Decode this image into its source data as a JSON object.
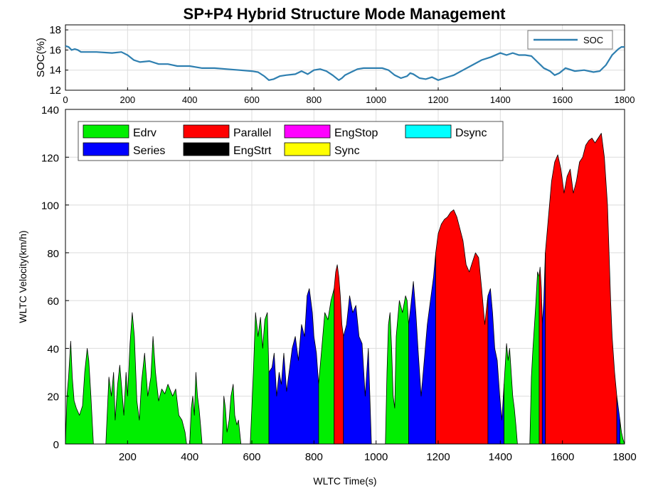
{
  "title": "SP+P4 Hybrid Structure Mode Management",
  "chart_data": [
    {
      "type": "line",
      "ylabel": "SOC(%)",
      "xlim": [
        0,
        1800
      ],
      "ylim": [
        12,
        18.5
      ],
      "yticks": [
        12,
        14,
        16,
        18
      ],
      "xticks": [
        0,
        200,
        400,
        600,
        800,
        1000,
        1200,
        1400,
        1600,
        1800
      ],
      "grid": true,
      "legend_position": "top-right",
      "series": [
        {
          "name": "SOC",
          "color": "#2e7fb0",
          "x": [
            0,
            10,
            20,
            30,
            40,
            50,
            70,
            100,
            150,
            180,
            200,
            220,
            240,
            270,
            300,
            330,
            360,
            400,
            440,
            480,
            520,
            560,
            600,
            620,
            640,
            655,
            670,
            690,
            710,
            740,
            760,
            780,
            800,
            820,
            840,
            860,
            880,
            890,
            900,
            920,
            940,
            960,
            980,
            1000,
            1020,
            1040,
            1060,
            1080,
            1100,
            1110,
            1120,
            1140,
            1160,
            1180,
            1200,
            1220,
            1250,
            1280,
            1310,
            1340,
            1370,
            1400,
            1420,
            1440,
            1460,
            1480,
            1500,
            1520,
            1540,
            1560,
            1575,
            1590,
            1610,
            1640,
            1670,
            1700,
            1720,
            1740,
            1760,
            1780,
            1790,
            1800
          ],
          "values": [
            16.4,
            16.3,
            16.0,
            16.1,
            16.0,
            15.8,
            15.8,
            15.8,
            15.7,
            15.8,
            15.5,
            15.0,
            14.8,
            14.9,
            14.6,
            14.6,
            14.4,
            14.4,
            14.2,
            14.2,
            14.1,
            14.0,
            13.9,
            13.8,
            13.4,
            13.0,
            13.1,
            13.4,
            13.5,
            13.6,
            13.9,
            13.6,
            14.0,
            14.1,
            13.9,
            13.5,
            13.0,
            13.2,
            13.5,
            13.8,
            14.1,
            14.2,
            14.2,
            14.2,
            14.2,
            14.0,
            13.5,
            13.2,
            13.4,
            13.7,
            13.6,
            13.2,
            13.1,
            13.3,
            13.0,
            13.2,
            13.5,
            14.0,
            14.5,
            15.0,
            15.3,
            15.7,
            15.5,
            15.7,
            15.5,
            15.5,
            15.4,
            14.8,
            14.2,
            13.9,
            13.5,
            13.7,
            14.2,
            13.9,
            14.0,
            13.8,
            13.9,
            14.5,
            15.5,
            16.1,
            16.3,
            16.3
          ]
        }
      ]
    },
    {
      "type": "area",
      "xlabel": "WLTC Time(s)",
      "ylabel": "WLTC Velocity(km/h)",
      "xlim": [
        0,
        1800
      ],
      "ylim": [
        0,
        140
      ],
      "xticks": [
        200,
        400,
        600,
        800,
        1000,
        1200,
        1400,
        1600,
        1800
      ],
      "yticks": [
        0,
        20,
        40,
        60,
        80,
        100,
        120,
        140
      ],
      "grid": true,
      "legend_position": "top-left",
      "legend": [
        {
          "name": "Edrv",
          "color": "#00ee00"
        },
        {
          "name": "Series",
          "color": "#0000ff"
        },
        {
          "name": "Parallel",
          "color": "#ff0000"
        },
        {
          "name": "EngStrt",
          "color": "#000000"
        },
        {
          "name": "EngStop",
          "color": "#ff00ff"
        },
        {
          "name": "Sync",
          "color": "#ffff00"
        },
        {
          "name": "Dsync",
          "color": "#00ffff"
        }
      ],
      "segments": [
        {
          "mode": "Edrv",
          "x": [
            0,
            5,
            10,
            17,
            22,
            28,
            35,
            45,
            55,
            62,
            70,
            75,
            82,
            90
          ],
          "values": [
            0,
            20,
            28,
            43,
            28,
            18,
            15,
            12,
            16,
            30,
            40,
            35,
            20,
            0
          ]
        },
        {
          "mode": "Edrv",
          "x": [
            130,
            140,
            148,
            155,
            160,
            168,
            175,
            182,
            188,
            195,
            200,
            208,
            215,
            222,
            230,
            238,
            245,
            255,
            265,
            275,
            282,
            290,
            300,
            310,
            320,
            330,
            345,
            355,
            365,
            375,
            385,
            390
          ],
          "values": [
            0,
            28,
            20,
            30,
            10,
            25,
            33,
            22,
            12,
            30,
            20,
            42,
            55,
            45,
            18,
            10,
            26,
            38,
            20,
            28,
            45,
            30,
            18,
            23,
            21,
            25,
            20,
            23,
            12,
            10,
            5,
            0
          ]
        },
        {
          "mode": "Edrv",
          "x": [
            400,
            405,
            410,
            415,
            420,
            425,
            430,
            435,
            440
          ],
          "values": [
            0,
            15,
            20,
            12,
            30,
            20,
            15,
            8,
            0
          ]
        },
        {
          "mode": "Edrv",
          "x": [
            505,
            510,
            515,
            520,
            527,
            533,
            540,
            545,
            552,
            557,
            565
          ],
          "values": [
            0,
            20,
            15,
            5,
            10,
            20,
            25,
            12,
            8,
            10,
            0
          ]
        },
        {
          "mode": "Edrv",
          "x": [
            595,
            605,
            612,
            620,
            628,
            635,
            642,
            650,
            655
          ],
          "values": [
            0,
            30,
            55,
            45,
            53,
            40,
            52,
            55,
            30
          ]
        },
        {
          "mode": "Series",
          "x": [
            655,
            665,
            672,
            680,
            688,
            695,
            703,
            712,
            720,
            730,
            740,
            750,
            760,
            770,
            778,
            785,
            795,
            800,
            808,
            815
          ],
          "values": [
            30,
            32,
            38,
            20,
            30,
            25,
            38,
            22,
            30,
            40,
            45,
            35,
            50,
            45,
            62,
            65,
            55,
            45,
            38,
            25
          ]
        },
        {
          "mode": "Edrv",
          "x": [
            815,
            825,
            835,
            845,
            855,
            865
          ],
          "values": [
            25,
            40,
            55,
            52,
            60,
            65
          ]
        },
        {
          "mode": "Parallel",
          "x": [
            865,
            870,
            875,
            880,
            885,
            890,
            895
          ],
          "values": [
            65,
            72,
            75,
            70,
            62,
            50,
            45
          ]
        },
        {
          "mode": "Series",
          "x": [
            895,
            905,
            915,
            925,
            935,
            945,
            955,
            965,
            975,
            985
          ],
          "values": [
            45,
            50,
            62,
            55,
            58,
            45,
            42,
            20,
            40,
            0
          ]
        },
        {
          "mode": "Edrv",
          "x": [
            1030,
            1035,
            1040,
            1045,
            1050,
            1055,
            1060,
            1065,
            1075,
            1085,
            1095,
            1100,
            1105
          ],
          "values": [
            0,
            30,
            50,
            55,
            40,
            20,
            15,
            45,
            60,
            55,
            62,
            60,
            50
          ]
        },
        {
          "mode": "Series",
          "x": [
            1105,
            1112,
            1120,
            1128,
            1135,
            1140,
            1145,
            1155,
            1165,
            1175,
            1185,
            1192
          ],
          "values": [
            50,
            58,
            68,
            55,
            40,
            30,
            20,
            35,
            50,
            60,
            70,
            80
          ]
        },
        {
          "mode": "Parallel",
          "x": [
            1192,
            1200,
            1210,
            1220,
            1230,
            1240,
            1250,
            1260,
            1270,
            1280,
            1290,
            1300,
            1310,
            1320,
            1330,
            1340,
            1350,
            1360
          ],
          "values": [
            80,
            88,
            92,
            94,
            95,
            97,
            98,
            95,
            90,
            85,
            75,
            72,
            76,
            80,
            78,
            65,
            50,
            62
          ]
        },
        {
          "mode": "Series",
          "x": [
            1360,
            1368,
            1375,
            1382,
            1390,
            1398,
            1405,
            1412
          ],
          "values": [
            62,
            65,
            55,
            40,
            35,
            20,
            10,
            25
          ]
        },
        {
          "mode": "Edrv",
          "x": [
            1412,
            1420,
            1425,
            1430,
            1435,
            1440,
            1445,
            1450,
            1455
          ],
          "values": [
            25,
            42,
            35,
            40,
            30,
            20,
            15,
            8,
            0
          ]
        },
        {
          "mode": "Edrv",
          "x": [
            1495,
            1500,
            1505,
            1510,
            1515,
            1520,
            1525
          ],
          "values": [
            0,
            28,
            40,
            50,
            60,
            72,
            70
          ]
        },
        {
          "mode": "Parallel",
          "x": [
            1525,
            1528,
            1532,
            1535
          ],
          "values": [
            70,
            74,
            65,
            50
          ]
        },
        {
          "mode": "Series",
          "x": [
            1535,
            1540,
            1545
          ],
          "values": [
            50,
            60,
            80
          ]
        },
        {
          "mode": "Parallel",
          "x": [
            1545,
            1555,
            1565,
            1575,
            1585,
            1595,
            1605,
            1615,
            1625,
            1635,
            1645,
            1655,
            1665,
            1675,
            1685,
            1695,
            1705,
            1715,
            1725,
            1735,
            1745,
            1750,
            1755,
            1760,
            1768,
            1775
          ],
          "values": [
            80,
            95,
            110,
            118,
            121,
            115,
            105,
            112,
            115,
            105,
            110,
            118,
            120,
            125,
            127,
            128,
            126,
            128,
            130,
            120,
            100,
            80,
            60,
            45,
            30,
            20
          ]
        },
        {
          "mode": "Series",
          "x": [
            1775,
            1780,
            1785
          ],
          "values": [
            20,
            15,
            10
          ]
        },
        {
          "mode": "Edrv",
          "x": [
            1785,
            1790,
            1795,
            1800
          ],
          "values": [
            10,
            5,
            2,
            0
          ]
        }
      ]
    }
  ]
}
